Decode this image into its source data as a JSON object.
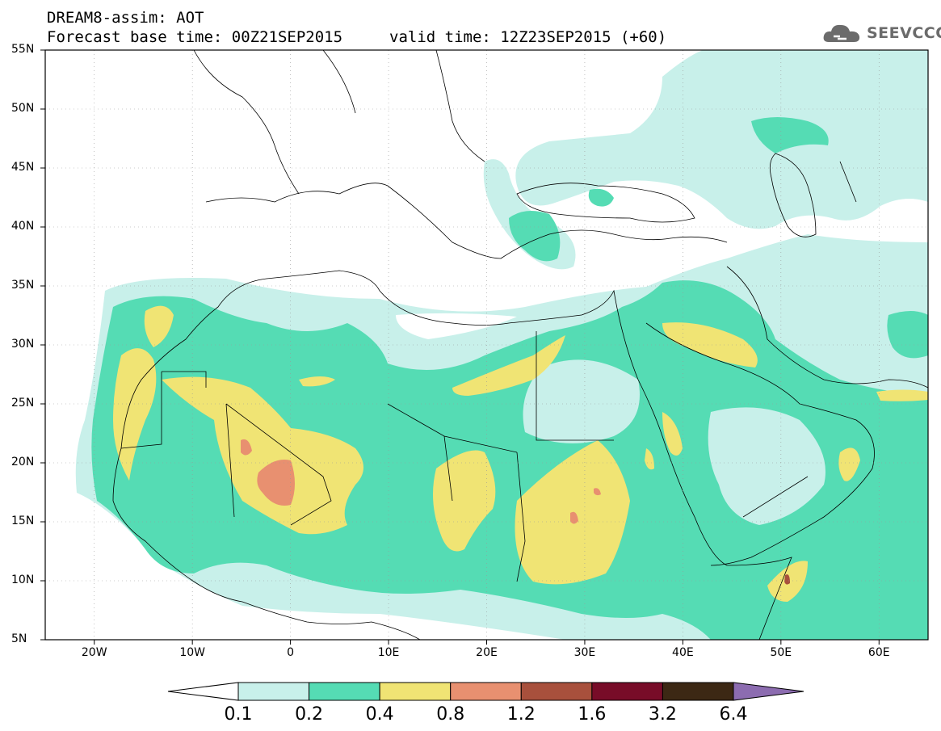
{
  "title_line1": "DREAM8-assim: AOT",
  "title_line2": "Forecast base time: 00Z21SEP2015",
  "valid_time": "valid time: 12Z23SEP2015 (+60)",
  "logo_text": "SEEVCCC",
  "lat_labels": [
    "55N",
    "50N",
    "45N",
    "40N",
    "35N",
    "30N",
    "25N",
    "20N",
    "15N",
    "10N",
    "5N"
  ],
  "lon_labels": [
    "20W",
    "10W",
    "0",
    "10E",
    "20E",
    "30E",
    "40E",
    "50E",
    "60E"
  ],
  "colorbar": {
    "labels": [
      "0.1",
      "0.2",
      "0.4",
      "0.8",
      "1.2",
      "1.6",
      "3.2",
      "6.4"
    ],
    "colors": [
      "#c8f0ea",
      "#55dcb4",
      "#f0e474",
      "#e89070",
      "#a8503c",
      "#780c28",
      "#3c2814",
      "#8c6cb0"
    ]
  },
  "map_colors": {
    "water": "#ffffff",
    "level1": "#c8f0ea",
    "level2": "#55dcb4",
    "level3": "#f0e474",
    "level4": "#e89070",
    "level5": "#a8503c"
  }
}
